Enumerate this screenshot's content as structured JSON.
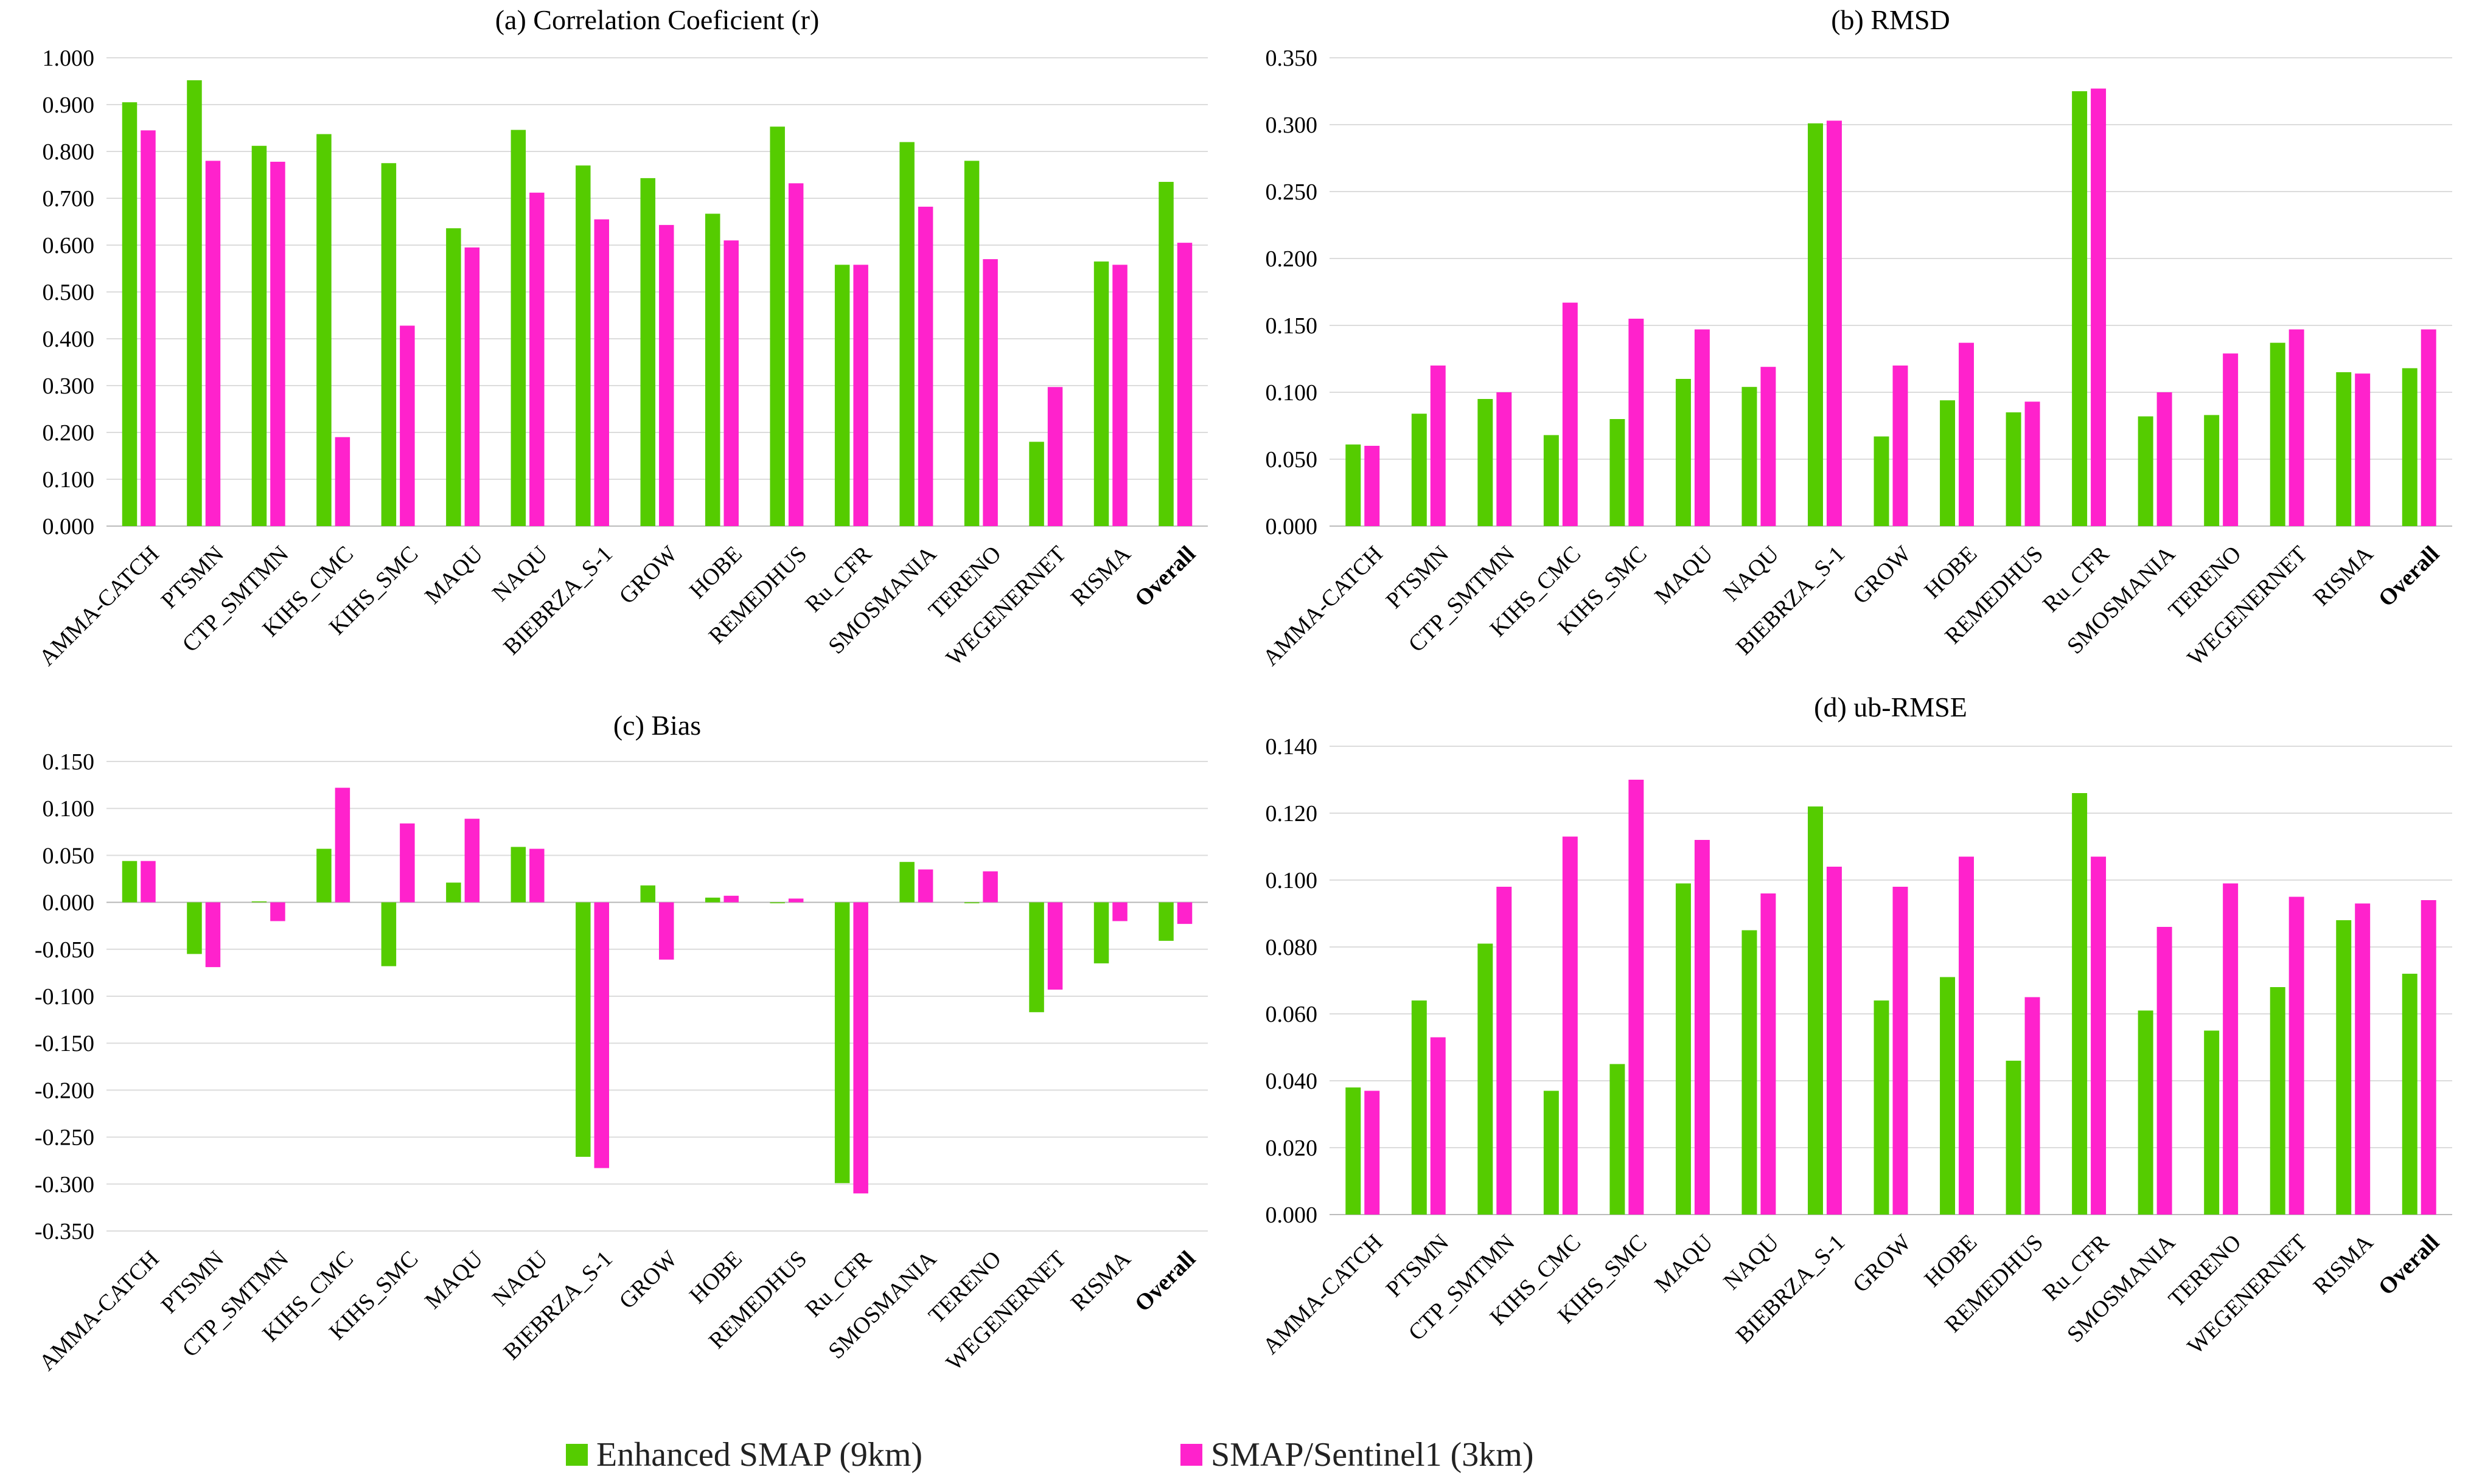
{
  "colors": {
    "enhanced": "#55cc00",
    "sentinel": "#ff22cc",
    "grid": "#dcdcdc",
    "axis": "#bbbbbb"
  },
  "legend": {
    "enhanced": "Enhanced SMAP (9km)",
    "sentinel": "SMAP/Sentinel1 (3km)"
  },
  "chart_data": [
    {
      "type": "bar",
      "title": "(a)   Correlation Coeficient (r)",
      "categories": [
        "AMMA-CATCH",
        "PTSMN",
        "CTP_SMTMN",
        "KIHS_CMC",
        "KIHS_SMC",
        "MAQU",
        "NAQU",
        "BIEBRZA_S-1",
        "GROW",
        "HOBE",
        "REMEDHUS",
        "Ru_CFR",
        "SMOSMANIA",
        "TERENO",
        "WEGENERNET",
        "RISMA",
        "Overall"
      ],
      "series": [
        {
          "name": "Enhanced SMAP (9km)",
          "values": [
            0.905,
            0.952,
            0.812,
            0.837,
            0.775,
            0.636,
            0.846,
            0.77,
            0.743,
            0.667,
            0.853,
            0.558,
            0.82,
            0.78,
            0.18,
            0.565,
            0.735
          ]
        },
        {
          "name": "SMAP/Sentinel1 (3km)",
          "values": [
            0.845,
            0.78,
            0.778,
            0.19,
            0.428,
            0.595,
            0.712,
            0.655,
            0.643,
            0.61,
            0.732,
            0.558,
            0.682,
            0.57,
            0.297,
            0.558,
            0.605
          ]
        }
      ],
      "ylim": [
        0,
        1.0
      ],
      "yticks": [
        "0.000",
        "0.100",
        "0.200",
        "0.300",
        "0.400",
        "0.500",
        "0.600",
        "0.700",
        "0.800",
        "0.900",
        "1.000"
      ]
    },
    {
      "type": "bar",
      "title": "(b)   RMSD",
      "categories": [
        "AMMA-CATCH",
        "PTSMN",
        "CTP_SMTMN",
        "KIHS_CMC",
        "KIHS_SMC",
        "MAQU",
        "NAQU",
        "BIEBRZA_S-1",
        "GROW",
        "HOBE",
        "REMEDHUS",
        "Ru_CFR",
        "SMOSMANIA",
        "TERENO",
        "WEGENERNET",
        "RISMA",
        "Overall"
      ],
      "series": [
        {
          "name": "Enhanced SMAP (9km)",
          "values": [
            0.061,
            0.084,
            0.095,
            0.068,
            0.08,
            0.11,
            0.104,
            0.301,
            0.067,
            0.094,
            0.085,
            0.325,
            0.082,
            0.083,
            0.137,
            0.115,
            0.118
          ]
        },
        {
          "name": "SMAP/Sentinel1 (3km)",
          "values": [
            0.06,
            0.12,
            0.1,
            0.167,
            0.155,
            0.147,
            0.119,
            0.303,
            0.12,
            0.137,
            0.093,
            0.327,
            0.1,
            0.129,
            0.147,
            0.114,
            0.147
          ]
        }
      ],
      "ylim": [
        0,
        0.35
      ],
      "yticks": [
        "0.000",
        "0.050",
        "0.100",
        "0.150",
        "0.200",
        "0.250",
        "0.300",
        "0.350"
      ]
    },
    {
      "type": "bar",
      "title": "(c)   Bias",
      "categories": [
        "AMMA-CATCH",
        "PTSMN",
        "CTP_SMTMN",
        "KIHS_CMC",
        "KIHS_SMC",
        "MAQU",
        "NAQU",
        "BIEBRZA_S-1",
        "GROW",
        "HOBE",
        "REMEDHUS",
        "Ru_CFR",
        "SMOSMANIA",
        "TERENO",
        "WEGENERNET",
        "RISMA",
        "Overall"
      ],
      "series": [
        {
          "name": "Enhanced SMAP (9km)",
          "values": [
            0.044,
            -0.055,
            0.001,
            0.057,
            -0.068,
            0.021,
            0.059,
            -0.271,
            0.018,
            0.005,
            -0.001,
            -0.299,
            0.043,
            -0.001,
            -0.117,
            -0.065,
            -0.041
          ]
        },
        {
          "name": "SMAP/Sentinel1 (3km)",
          "values": [
            0.044,
            -0.069,
            -0.02,
            0.122,
            0.084,
            0.089,
            0.057,
            -0.283,
            -0.061,
            0.007,
            0.004,
            -0.31,
            0.035,
            0.033,
            -0.093,
            -0.02,
            -0.023
          ]
        }
      ],
      "ylim": [
        -0.35,
        0.15
      ],
      "yticks": [
        "-0.350",
        "-0.300",
        "-0.250",
        "-0.200",
        "-0.150",
        "-0.100",
        "-0.050",
        "0.000",
        "0.050",
        "0.100",
        "0.150"
      ]
    },
    {
      "type": "bar",
      "title": "(d)   ub-RMSE",
      "categories": [
        "AMMA-CATCH",
        "PTSMN",
        "CTP_SMTMN",
        "KIHS_CMC",
        "KIHS_SMC",
        "MAQU",
        "NAQU",
        "BIEBRZA_S-1",
        "GROW",
        "HOBE",
        "REMEDHUS",
        "Ru_CFR",
        "SMOSMANIA",
        "TERENO",
        "WEGENERNET",
        "RISMA",
        "Overall"
      ],
      "series": [
        {
          "name": "Enhanced SMAP (9km)",
          "values": [
            0.038,
            0.064,
            0.081,
            0.037,
            0.045,
            0.099,
            0.085,
            0.122,
            0.064,
            0.071,
            0.046,
            0.126,
            0.061,
            0.055,
            0.068,
            0.088,
            0.072
          ]
        },
        {
          "name": "SMAP/Sentinel1 (3km)",
          "values": [
            0.037,
            0.053,
            0.098,
            0.113,
            0.13,
            0.112,
            0.096,
            0.104,
            0.098,
            0.107,
            0.065,
            0.107,
            0.086,
            0.099,
            0.095,
            0.093,
            0.094
          ]
        }
      ],
      "ylim": [
        0,
        0.14
      ],
      "yticks": [
        "0.000",
        "0.020",
        "0.040",
        "0.060",
        "0.080",
        "0.100",
        "0.120",
        "0.140"
      ]
    }
  ]
}
